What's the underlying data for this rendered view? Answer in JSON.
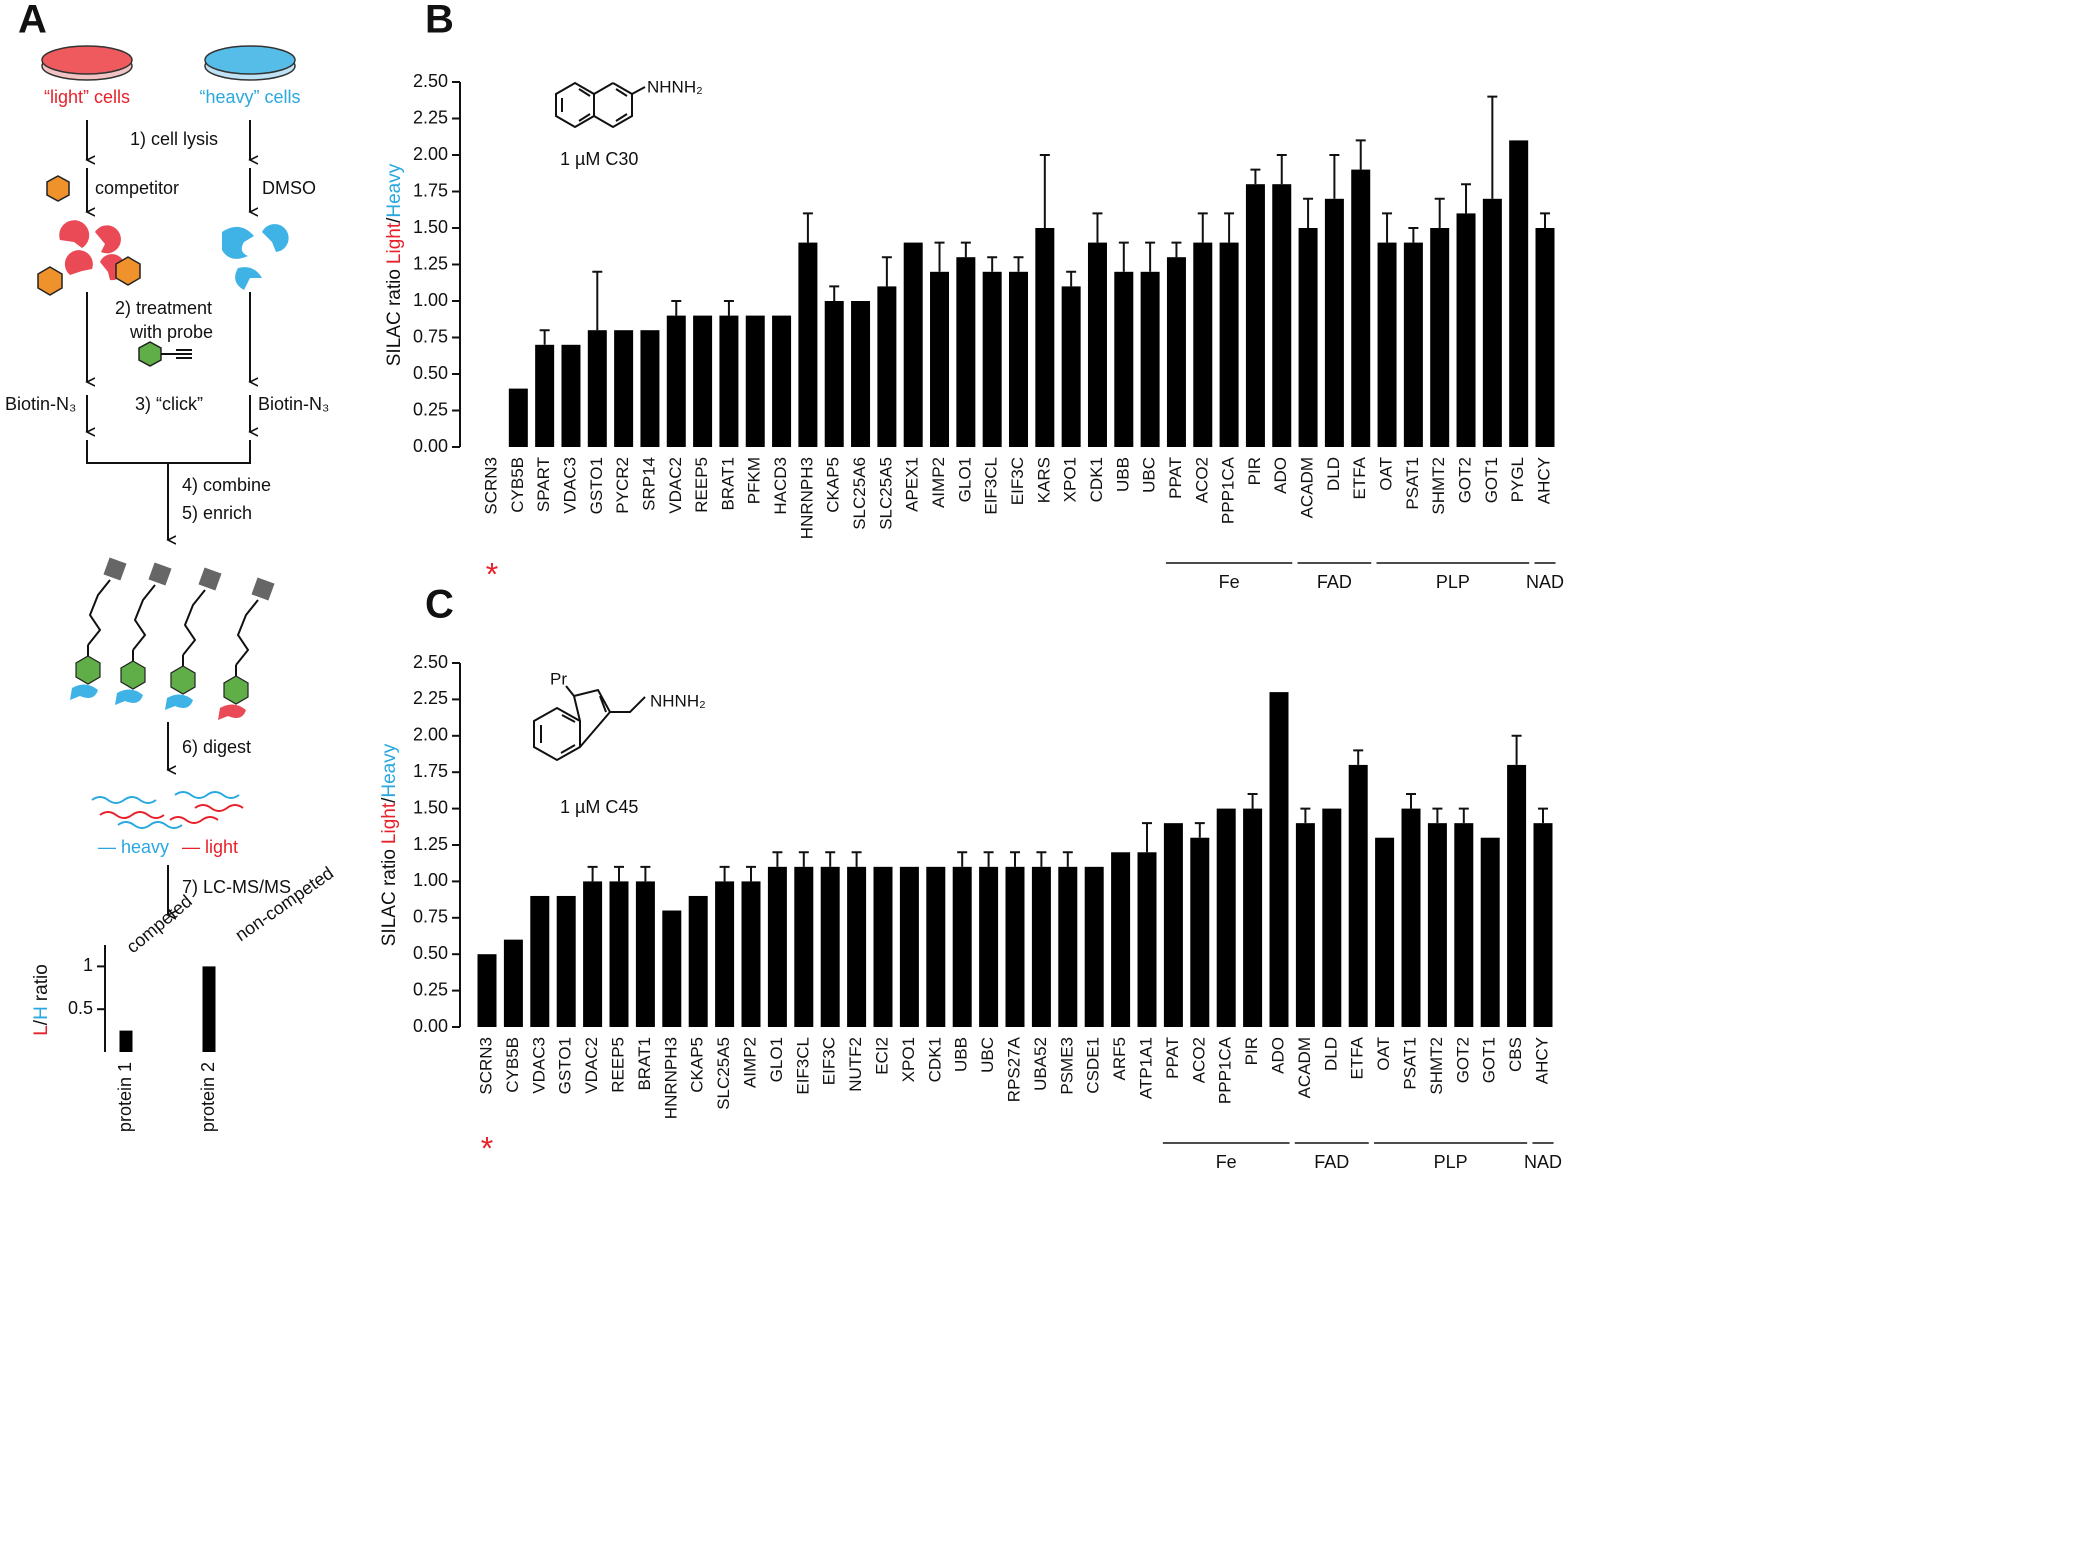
{
  "diagram": {
    "panel": "A",
    "light_cells": "“light” cells",
    "heavy_cells": "“heavy” cells",
    "step1": "1) cell lysis",
    "competitor": "competitor",
    "dmso": "DMSO",
    "step2a": "2) treatment",
    "step2b": "with probe",
    "biotin_left": "Biotin-N₃",
    "step3": "3) “click”",
    "biotin_right": "Biotin-N₃",
    "step4": "4) combine",
    "step5": "5) enrich",
    "step6": "6) digest",
    "heavy_key": "— heavy",
    "light_key": "— light",
    "step7": "7) LC-MS/MS"
  },
  "chart_data": [
    {
      "type": "bar",
      "panel": "B",
      "compound_group": "NHNH₂",
      "compound_label": "1 µM C30",
      "ylabel_parts": [
        {
          "text": "SILAC ratio",
          "color": "#111111"
        },
        {
          "text": "Light",
          "color": "#e8202a"
        },
        {
          "text": "/",
          "color": "#111111"
        },
        {
          "text": "Heavy",
          "color": "#29a8e0"
        }
      ],
      "categories": [
        "SCRN3",
        "CYB5B",
        "SPART",
        "VDAC3",
        "GSTO1",
        "PYCR2",
        "SRP14",
        "VDAC2",
        "REEP5",
        "BRAT1",
        "PFKM",
        "HACD3",
        "HNRNPH3",
        "CKAP5",
        "SLC25A6",
        "SLC25A5",
        "APEX1",
        "AIMP2",
        "GLO1",
        "EIF3CL",
        "EIF3C",
        "KARS",
        "XPO1",
        "CDK1",
        "UBB",
        "UBC",
        "PPAT",
        "ACO2",
        "PPP1CA",
        "PIR",
        "ADO",
        "ACADM",
        "DLD",
        "ETFA",
        "OAT",
        "PSAT1",
        "SHMT2",
        "GOT2",
        "GOT1",
        "PYGL",
        "AHCY"
      ],
      "values": [
        0,
        0.4,
        0.7,
        0.7,
        0.8,
        0.8,
        0.8,
        0.9,
        0.9,
        0.9,
        0.9,
        0.9,
        1.4,
        1.0,
        1.0,
        1.1,
        1.4,
        1.2,
        1.3,
        1.2,
        1.2,
        1.5,
        1.1,
        1.4,
        1.2,
        1.2,
        1.3,
        1.4,
        1.4,
        1.8,
        1.8,
        1.5,
        1.7,
        1.9,
        1.4,
        1.4,
        1.5,
        1.6,
        1.7,
        2.1,
        1.5
      ],
      "errors": [
        null,
        null,
        0.1,
        null,
        0.4,
        null,
        null,
        0.1,
        null,
        0.1,
        null,
        null,
        0.2,
        0.1,
        null,
        0.2,
        null,
        0.2,
        0.1,
        0.1,
        0.1,
        0.5,
        0.1,
        0.2,
        0.2,
        0.2,
        0.1,
        0.2,
        0.2,
        0.1,
        0.2,
        0.2,
        0.3,
        0.2,
        0.2,
        0.1,
        0.2,
        0.2,
        0.7,
        null,
        0.1
      ],
      "groups": [
        null,
        null,
        null,
        null,
        null,
        null,
        null,
        null,
        null,
        null,
        null,
        null,
        null,
        null,
        null,
        null,
        null,
        null,
        null,
        null,
        null,
        null,
        null,
        null,
        null,
        null,
        "Fe",
        "Fe",
        "Fe",
        "Fe",
        "Fe",
        "FAD",
        "FAD",
        "FAD",
        "PLP",
        "PLP",
        "PLP",
        "PLP",
        "PLP",
        "PLP",
        "NAD"
      ],
      "marker": "*",
      "color": "#000000",
      "ylim": [
        0,
        2.5
      ],
      "yticks": [
        {
          "value": 0,
          "label": "0.00"
        },
        {
          "value": 0.25,
          "label": "0.25"
        },
        {
          "value": 0.5,
          "label": "0.50"
        },
        {
          "value": 0.75,
          "label": "0.75"
        },
        {
          "value": 1,
          "label": "1.00"
        },
        {
          "value": 1.25,
          "label": "1.25"
        },
        {
          "value": 1.5,
          "label": "1.50"
        },
        {
          "value": 1.75,
          "label": "1.75"
        },
        {
          "value": 2,
          "label": "2.00"
        },
        {
          "value": 2.25,
          "label": "2.25"
        },
        {
          "value": 2.5,
          "label": "2.50"
        }
      ]
    },
    {
      "type": "bar",
      "panel": "C",
      "compound_group": "NHNH₂",
      "compound_substituent": "Pr",
      "compound_label": "1 µM C45",
      "ylabel_parts": [
        {
          "text": "SILAC ratio",
          "color": "#111111"
        },
        {
          "text": "Light",
          "color": "#e8202a"
        },
        {
          "text": "/",
          "color": "#111111"
        },
        {
          "text": "Heavy",
          "color": "#29a8e0"
        }
      ],
      "categories": [
        "SCRN3",
        "CYB5B",
        "VDAC3",
        "GSTO1",
        "VDAC2",
        "REEP5",
        "BRAT1",
        "HNRNPH3",
        "CKAP5",
        "SLC25A5",
        "AIMP2",
        "GLO1",
        "EIF3CL",
        "EIF3C",
        "NUTF2",
        "ECI2",
        "XPO1",
        "CDK1",
        "UBB",
        "UBC",
        "RPS27A",
        "UBA52",
        "PSME3",
        "CSDE1",
        "ARF5",
        "ATP1A1",
        "PPAT",
        "ACO2",
        "PPP1CA",
        "PIR",
        "ADO",
        "ACADM",
        "DLD",
        "ETFA",
        "OAT",
        "PSAT1",
        "SHMT2",
        "GOT2",
        "GOT1",
        "CBS",
        "AHCY"
      ],
      "values": [
        0.5,
        0.6,
        0.9,
        0.9,
        1.0,
        1.0,
        1.0,
        0.8,
        0.9,
        1.0,
        1.0,
        1.1,
        1.1,
        1.1,
        1.1,
        1.1,
        1.1,
        1.1,
        1.1,
        1.1,
        1.1,
        1.1,
        1.1,
        1.1,
        1.2,
        1.2,
        1.4,
        1.3,
        1.5,
        1.5,
        2.3,
        1.4,
        1.5,
        1.8,
        1.3,
        1.5,
        1.4,
        1.4,
        1.3,
        1.8,
        1.4
      ],
      "errors": [
        null,
        null,
        null,
        null,
        0.1,
        0.1,
        0.1,
        null,
        null,
        0.1,
        0.1,
        0.1,
        0.1,
        0.1,
        0.1,
        null,
        null,
        null,
        0.1,
        0.1,
        0.1,
        0.1,
        0.1,
        null,
        null,
        0.2,
        null,
        0.1,
        null,
        0.1,
        null,
        0.1,
        null,
        0.1,
        null,
        0.1,
        0.1,
        0.1,
        null,
        0.2,
        0.1
      ],
      "groups": [
        null,
        null,
        null,
        null,
        null,
        null,
        null,
        null,
        null,
        null,
        null,
        null,
        null,
        null,
        null,
        null,
        null,
        null,
        null,
        null,
        null,
        null,
        null,
        null,
        null,
        null,
        "Fe",
        "Fe",
        "Fe",
        "Fe",
        "Fe",
        "FAD",
        "FAD",
        "FAD",
        "PLP",
        "PLP",
        "PLP",
        "PLP",
        "PLP",
        "PLP",
        "NAD"
      ],
      "marker": "*",
      "color": "#000000",
      "ylim": [
        0,
        2.5
      ],
      "yticks": [
        {
          "value": 0,
          "label": "0.00"
        },
        {
          "value": 0.25,
          "label": "0.25"
        },
        {
          "value": 0.5,
          "label": "0.50"
        },
        {
          "value": 0.75,
          "label": "0.75"
        },
        {
          "value": 1,
          "label": "1.00"
        },
        {
          "value": 1.25,
          "label": "1.25"
        },
        {
          "value": 1.5,
          "label": "1.50"
        },
        {
          "value": 1.75,
          "label": "1.75"
        },
        {
          "value": 2,
          "label": "2.00"
        },
        {
          "value": 2.25,
          "label": "2.25"
        },
        {
          "value": 2.5,
          "label": "2.50"
        }
      ]
    },
    {
      "type": "bar",
      "ylabel_parts": [
        {
          "text": "L",
          "color": "#e8202a"
        },
        {
          "text": "/",
          "color": "#111111"
        },
        {
          "text": "H",
          "color": "#29a8e0"
        },
        {
          "text": "ratio",
          "color": "#111111"
        }
      ],
      "categories": [
        "protein 1",
        "protein 2"
      ],
      "values": [
        0.25,
        1
      ],
      "annotations": [
        "competed",
        "non-competed"
      ],
      "color": "#000000",
      "ylim": [
        0,
        1.25
      ],
      "yticks": [
        0.5,
        1
      ]
    }
  ]
}
